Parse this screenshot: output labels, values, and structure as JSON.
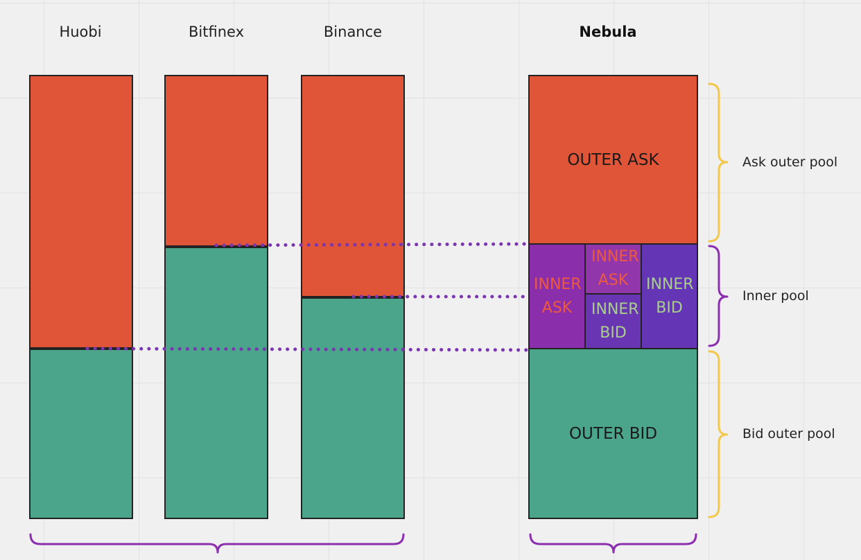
{
  "exchanges": [
    {
      "name": "Huobi"
    },
    {
      "name": "Bitfinex"
    },
    {
      "name": "Binance"
    }
  ],
  "nebula": {
    "title": "Nebula",
    "outer_ask": "OUTER ASK",
    "outer_bid": "OUTER BID",
    "inner_ask_1": "INNER ASK",
    "inner_ask_2": "INNER ASK",
    "inner_bid_1": "INNER BID",
    "inner_bid_2": "INNER BID"
  },
  "pools": {
    "ask_outer": "Ask outer pool",
    "inner": "Inner pool",
    "bid_outer": "Bid outer pool"
  },
  "colors": {
    "ask": "#e05438",
    "bid": "#4ba58a",
    "inner_purple": "#8a2eab",
    "inner_violet": "#6435b4",
    "brace_yellow": "#f2c94c",
    "brace_purple": "#8b2fb0",
    "dotted_line": "#7a35b0"
  }
}
